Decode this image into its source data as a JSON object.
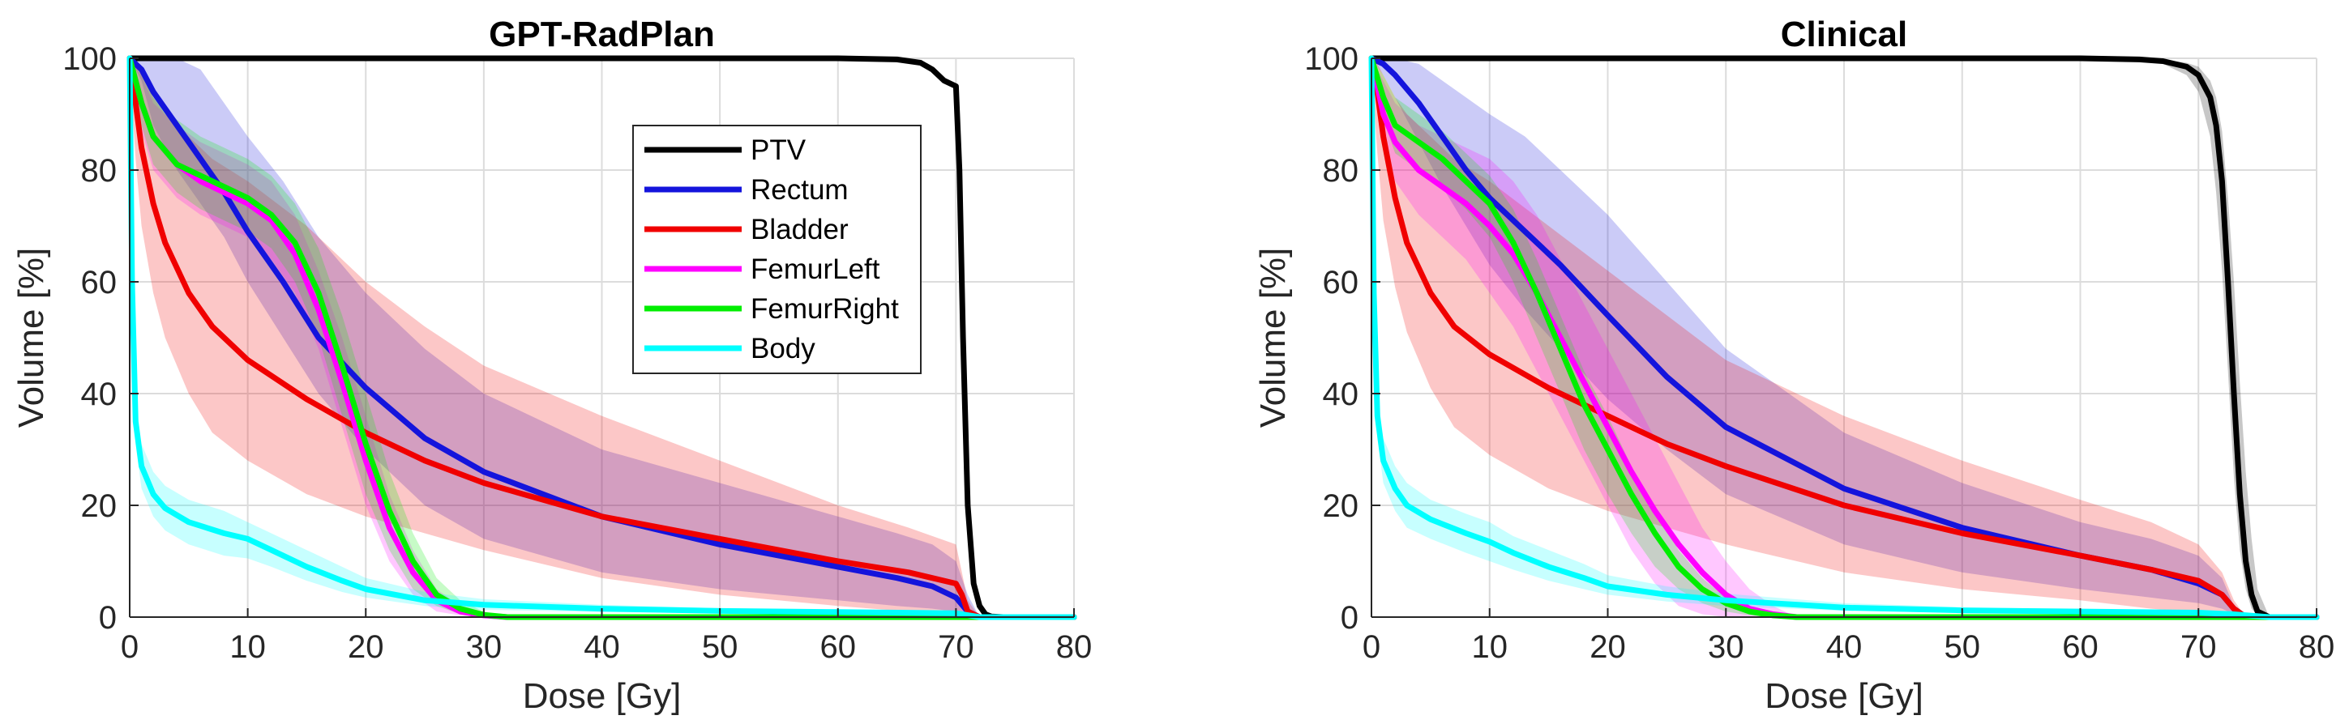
{
  "chart_data": [
    {
      "type": "line",
      "title": "GPT-RadPlan",
      "xlabel": "Dose [Gy]",
      "ylabel": "Volume [%]",
      "xlim": [
        0,
        80
      ],
      "ylim": [
        0,
        100
      ],
      "xticks": [
        0,
        10,
        20,
        30,
        40,
        50,
        60,
        70,
        80
      ],
      "yticks": [
        0,
        20,
        40,
        60,
        80,
        100
      ],
      "grid": true,
      "legend": "upper-center",
      "series": [
        {
          "name": "PTV",
          "color": "#000000",
          "x": [
            0,
            10,
            30,
            50,
            60,
            65,
            67,
            68,
            69,
            70,
            70.3,
            70.6,
            71,
            71.5,
            72,
            72.5,
            73,
            74,
            80
          ],
          "y": [
            100,
            100,
            100,
            100,
            100,
            99.8,
            99.2,
            98,
            96,
            95,
            80,
            50,
            20,
            6,
            2,
            0.5,
            0.1,
            0,
            0
          ],
          "band_upper": [],
          "band_lower": []
        },
        {
          "name": "Rectum",
          "color": "#1414DC",
          "x": [
            0,
            1,
            2,
            4,
            6,
            8,
            10,
            13,
            16,
            20,
            25,
            30,
            40,
            50,
            60,
            65,
            68,
            70,
            71,
            72,
            80
          ],
          "y": [
            100,
            98,
            94,
            88,
            82,
            76,
            69,
            60,
            50,
            41,
            32,
            26,
            18,
            13,
            9,
            7,
            5.5,
            3.5,
            1,
            0,
            0
          ],
          "band_upper": [
            100,
            100,
            100,
            100,
            98,
            92,
            86,
            78,
            68,
            58,
            48,
            40,
            30,
            24,
            18,
            15,
            13,
            10,
            4,
            0,
            0
          ],
          "band_lower": [
            100,
            96,
            88,
            80,
            74,
            68,
            60,
            50,
            40,
            30,
            20,
            14,
            8,
            5,
            3,
            2,
            1.5,
            1,
            0.3,
            0,
            0
          ]
        },
        {
          "name": "Bladder",
          "color": "#F00000",
          "x": [
            0,
            0.5,
            1,
            2,
            3,
            5,
            7,
            10,
            15,
            20,
            25,
            30,
            40,
            50,
            60,
            66,
            70,
            70.5,
            71,
            72,
            80
          ],
          "y": [
            100,
            92,
            84,
            74,
            67,
            58,
            52,
            46,
            39,
            33,
            28,
            24,
            18,
            14,
            10,
            8,
            6,
            4,
            1,
            0,
            0
          ],
          "band_upper": [
            100,
            99,
            97,
            93,
            90,
            86,
            82,
            78,
            70,
            60,
            52,
            45,
            36,
            28,
            20,
            16,
            13,
            8,
            3,
            0,
            0
          ],
          "band_lower": [
            98,
            82,
            70,
            58,
            50,
            40,
            33,
            28,
            22,
            18,
            15,
            12,
            7,
            4,
            2,
            1,
            0.5,
            0.3,
            0.1,
            0,
            0
          ]
        },
        {
          "name": "FemurLeft",
          "color": "#FF00FF",
          "x": [
            0,
            1,
            2,
            4,
            6,
            8,
            10,
            12,
            14,
            16,
            18,
            20,
            22,
            24,
            26,
            28,
            30,
            32,
            80
          ],
          "y": [
            100,
            92,
            86,
            81,
            78,
            76,
            74,
            71,
            65,
            55,
            42,
            28,
            16,
            8,
            3,
            1,
            0.3,
            0,
            0
          ],
          "band_upper": [
            100,
            97,
            92,
            88,
            85,
            83,
            81,
            78,
            72,
            62,
            50,
            36,
            22,
            12,
            5,
            2,
            0.5,
            0,
            0
          ],
          "band_lower": [
            100,
            87,
            80,
            75,
            72,
            70,
            68,
            64,
            58,
            48,
            34,
            20,
            10,
            4,
            1,
            0.3,
            0,
            0,
            0
          ]
        },
        {
          "name": "FemurRight",
          "color": "#00EE00",
          "x": [
            0,
            1,
            2,
            4,
            6,
            8,
            10,
            12,
            14,
            16,
            18,
            20,
            22,
            24,
            26,
            28,
            30,
            32,
            80
          ],
          "y": [
            100,
            92,
            86,
            81,
            79,
            77,
            75,
            72,
            67,
            58,
            45,
            31,
            19,
            10,
            4,
            1.5,
            0.4,
            0,
            0
          ],
          "band_upper": [
            100,
            97,
            93,
            89,
            86,
            84,
            82,
            79,
            74,
            66,
            54,
            40,
            26,
            15,
            7,
            3,
            1,
            0,
            0
          ],
          "band_lower": [
            100,
            88,
            81,
            76,
            73,
            71,
            69,
            66,
            60,
            50,
            36,
            22,
            12,
            5,
            2,
            0.5,
            0,
            0,
            0
          ]
        },
        {
          "name": "Body",
          "color": "#00FFFF",
          "x": [
            0,
            0.2,
            0.5,
            1,
            2,
            3,
            5,
            8,
            10,
            12,
            15,
            18,
            20,
            25,
            30,
            40,
            50,
            60,
            70,
            72,
            80
          ],
          "y": [
            100,
            60,
            35,
            27,
            22,
            19.5,
            17,
            15,
            14,
            12,
            9,
            6.5,
            5,
            3,
            2.2,
            1.5,
            1.1,
            0.9,
            0.7,
            0,
            0
          ],
          "band_upper": [
            100,
            64,
            39,
            31,
            26,
            23.5,
            21,
            19,
            17,
            15,
            12,
            9,
            7,
            4.5,
            3.2,
            2.2,
            1.6,
            1.3,
            1,
            0,
            0
          ],
          "band_lower": [
            100,
            56,
            31,
            23,
            18,
            15.5,
            13,
            11,
            10.5,
            9,
            6.5,
            4.5,
            3.5,
            2,
            1.3,
            0.9,
            0.7,
            0.6,
            0.4,
            0,
            0
          ]
        }
      ]
    },
    {
      "type": "line",
      "title": "Clinical",
      "xlabel": "Dose [Gy]",
      "ylabel": "Volume [%]",
      "xlim": [
        0,
        80
      ],
      "ylim": [
        0,
        100
      ],
      "xticks": [
        0,
        10,
        20,
        30,
        40,
        50,
        60,
        70,
        80
      ],
      "yticks": [
        0,
        20,
        40,
        60,
        80,
        100
      ],
      "grid": true,
      "series": [
        {
          "name": "PTV",
          "color": "#000000",
          "x": [
            0,
            30,
            50,
            60,
            65,
            67,
            69,
            70,
            71,
            71.5,
            72,
            72.5,
            73,
            73.5,
            74,
            74.5,
            75,
            76,
            80
          ],
          "y": [
            100,
            100,
            100,
            100,
            99.8,
            99.5,
            98.5,
            97,
            93,
            88,
            78,
            60,
            40,
            22,
            10,
            4,
            1,
            0,
            0
          ],
          "band_upper": [
            100,
            100,
            100,
            100,
            100,
            99.8,
            99.2,
            98.5,
            96,
            93,
            87,
            75,
            60,
            42,
            26,
            14,
            5,
            0,
            0
          ],
          "band_lower": [
            100,
            100,
            100,
            100,
            99.5,
            99,
            97,
            94,
            86,
            76,
            62,
            44,
            25,
            12,
            5,
            1.5,
            0.3,
            0,
            0
          ]
        },
        {
          "name": "Rectum",
          "color": "#1414DC",
          "x": [
            0,
            1,
            2,
            4,
            6,
            8,
            10,
            13,
            16,
            20,
            25,
            30,
            40,
            50,
            60,
            66,
            70,
            72,
            73,
            74,
            80
          ],
          "y": [
            100,
            99,
            97,
            92,
            86,
            80,
            75,
            69,
            63,
            54,
            43,
            34,
            23,
            16,
            11,
            8.5,
            6,
            4,
            1.5,
            0,
            0
          ],
          "band_upper": [
            100,
            100,
            100,
            99,
            96,
            93,
            90,
            86,
            80,
            72,
            60,
            48,
            33,
            24,
            17,
            14,
            11,
            7,
            2,
            0,
            0
          ],
          "band_lower": [
            100,
            97,
            93,
            85,
            77,
            70,
            63,
            55,
            48,
            39,
            30,
            22,
            13,
            8,
            5,
            3.5,
            2.5,
            1.5,
            0.5,
            0,
            0
          ]
        },
        {
          "name": "Bladder",
          "color": "#F00000",
          "x": [
            0,
            0.5,
            1,
            2,
            3,
            5,
            7,
            10,
            15,
            20,
            25,
            30,
            40,
            50,
            60,
            66,
            70,
            72,
            73,
            74,
            80
          ],
          "y": [
            100,
            94,
            86,
            75,
            67,
            58,
            52,
            47,
            41,
            36,
            31,
            27,
            20,
            15,
            11,
            8.5,
            6.5,
            4,
            1.5,
            0,
            0
          ],
          "band_upper": [
            100,
            99,
            97,
            93,
            90,
            86,
            82,
            78,
            70,
            62,
            54,
            46,
            36,
            28,
            21,
            17,
            13,
            8,
            3,
            0,
            0
          ],
          "band_lower": [
            98,
            83,
            71,
            59,
            51,
            41,
            34,
            29,
            23,
            19,
            16,
            13,
            8,
            5,
            3,
            1.5,
            0.8,
            0.4,
            0.2,
            0,
            0
          ]
        },
        {
          "name": "FemurLeft",
          "color": "#FF00FF",
          "x": [
            0,
            1,
            2,
            4,
            6,
            8,
            10,
            12,
            14,
            16,
            18,
            20,
            22,
            24,
            26,
            28,
            30,
            32,
            34,
            36,
            80
          ],
          "y": [
            100,
            90,
            85,
            80,
            77,
            74,
            70,
            65,
            58,
            50,
            42,
            34,
            26,
            19,
            13,
            8,
            4,
            1.5,
            0.5,
            0,
            0
          ],
          "band_upper": [
            100,
            96,
            92,
            88,
            86,
            84,
            82,
            78,
            72,
            64,
            56,
            48,
            40,
            32,
            24,
            16,
            10,
            5,
            2,
            0,
            0
          ],
          "band_lower": [
            100,
            84,
            78,
            72,
            68,
            64,
            58,
            52,
            44,
            36,
            28,
            20,
            12,
            6,
            2,
            0.5,
            0,
            0,
            0,
            0,
            0
          ]
        },
        {
          "name": "FemurRight",
          "color": "#00EE00",
          "x": [
            0,
            1,
            2,
            4,
            6,
            8,
            10,
            12,
            14,
            16,
            18,
            20,
            22,
            24,
            26,
            28,
            30,
            32,
            34,
            36,
            80
          ],
          "y": [
            100,
            93,
            88,
            85,
            82,
            78,
            74,
            67,
            58,
            48,
            38,
            30,
            22,
            15,
            9,
            5,
            2.5,
            1,
            0.3,
            0,
            0
          ],
          "band_upper": [
            100,
            97,
            93,
            90,
            87,
            83,
            79,
            73,
            64,
            54,
            44,
            36,
            27,
            19,
            12,
            7,
            3.5,
            1.5,
            0.5,
            0,
            0
          ],
          "band_lower": [
            100,
            89,
            83,
            80,
            77,
            73,
            68,
            60,
            50,
            40,
            30,
            22,
            15,
            9,
            5,
            2.5,
            1,
            0.3,
            0,
            0,
            0
          ]
        },
        {
          "name": "Body",
          "color": "#00FFFF",
          "x": [
            0,
            0.2,
            0.5,
            1,
            2,
            3,
            5,
            8,
            10,
            12,
            15,
            18,
            20,
            25,
            30,
            40,
            50,
            60,
            70,
            73,
            76,
            80
          ],
          "y": [
            100,
            58,
            36,
            28,
            23,
            20,
            17.5,
            15,
            13.5,
            11.5,
            9,
            7,
            5.5,
            4,
            3,
            1.7,
            1.2,
            1,
            0.8,
            0.5,
            0,
            0
          ],
          "band_upper": [
            100,
            62,
            40,
            32,
            27,
            24,
            21,
            18.5,
            17,
            14.5,
            12,
            9.5,
            7.5,
            5.5,
            4.2,
            2.5,
            1.8,
            1.4,
            1.1,
            0.8,
            0,
            0
          ],
          "band_lower": [
            100,
            54,
            32,
            24,
            19,
            16,
            14,
            11.5,
            10,
            8.5,
            6.5,
            5,
            4,
            2.8,
            2,
            1.1,
            0.8,
            0.6,
            0.5,
            0.3,
            0,
            0
          ]
        }
      ]
    }
  ]
}
